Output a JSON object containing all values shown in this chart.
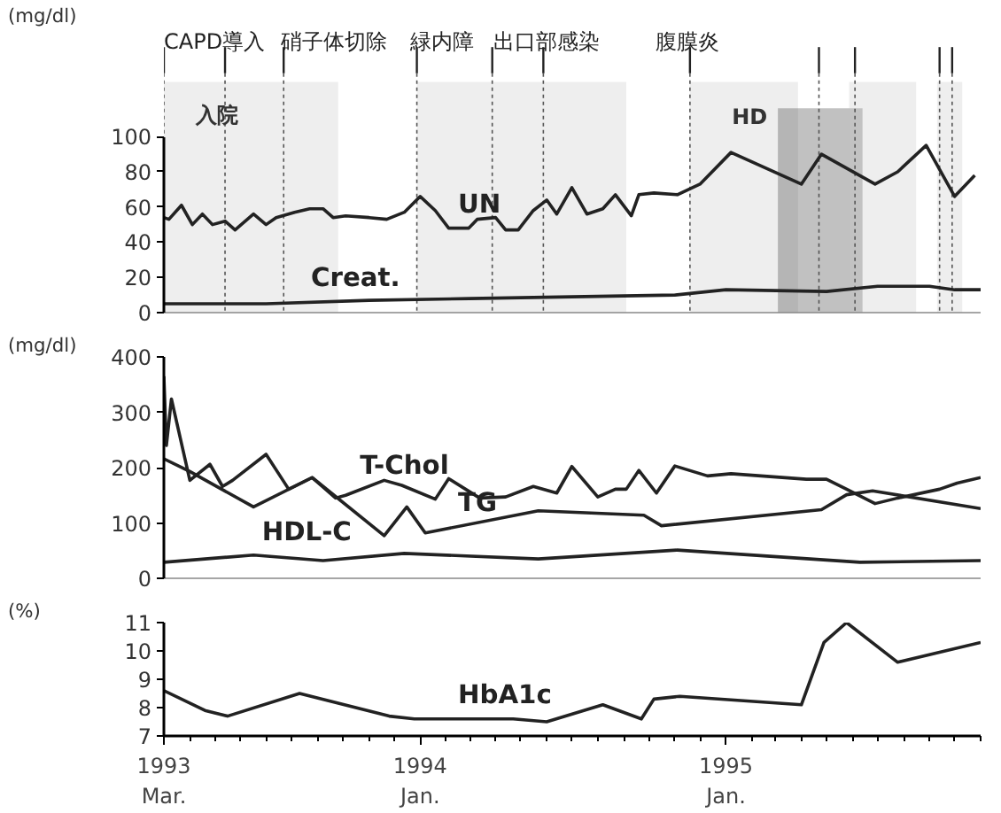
{
  "chart_data": [
    {
      "type": "line",
      "ylabel": "(mg/dl)",
      "xlim": [
        "1993-03-01",
        "1995-11-01"
      ],
      "ylim": [
        0,
        100
      ],
      "yticks": [
        0,
        20,
        40,
        60,
        80,
        100
      ],
      "tick_labels": "y",
      "grid": false,
      "marker": "none",
      "line_style": "solid",
      "bands": [
        {
          "axis": "x",
          "from": "1993-03-01",
          "to": "1993-09-25",
          "label": "入院",
          "color": "#c8c8c8"
        },
        {
          "axis": "x",
          "from": "1993-12-28",
          "to": "1994-09-04",
          "label": null,
          "color": "#c8c8c8"
        },
        {
          "axis": "x",
          "from": "1994-11-19",
          "to": "1995-03-28",
          "label": null,
          "color": "#c8c8c8"
        },
        {
          "axis": "x",
          "from": "1995-03-04",
          "to": "1995-06-13",
          "label": "HD",
          "color": "#333333"
        },
        {
          "axis": "x",
          "from": "1995-05-28",
          "to": "1995-08-16",
          "label": null,
          "color": "#c8c8c8"
        },
        {
          "axis": "x",
          "from": "1995-09-10",
          "to": "1995-10-10",
          "label": null,
          "color": "#c8c8c8"
        }
      ],
      "ref_lines": [
        {
          "axis": "x",
          "value": "1993-03-01",
          "label": "CAPD導入"
        },
        {
          "axis": "x",
          "value": "1993-05-13",
          "label": null
        },
        {
          "axis": "x",
          "value": "1993-07-22",
          "label": "硝子体切除"
        },
        {
          "axis": "x",
          "value": "1993-12-28",
          "label": "緑内障"
        },
        {
          "axis": "x",
          "value": "1994-03-28",
          "label": "出口部感染"
        },
        {
          "axis": "x",
          "value": "1994-05-28",
          "label": null
        },
        {
          "axis": "x",
          "value": "1994-11-19",
          "label": "腹膜炎"
        },
        {
          "axis": "x",
          "value": "1995-04-22",
          "label": null
        },
        {
          "axis": "x",
          "value": "1995-06-04",
          "label": null
        },
        {
          "axis": "x",
          "value": "1995-09-13",
          "label": null
        },
        {
          "axis": "x",
          "value": "1995-09-28",
          "label": null
        }
      ],
      "series": [
        {
          "name": "UN",
          "color": "#222222",
          "x": [
            "1993-03-01",
            "1993-03-07",
            "1993-03-22",
            "1993-04-04",
            "1993-04-16",
            "1993-04-28",
            "1993-05-13",
            "1993-05-25",
            "1993-06-16",
            "1993-07-01",
            "1993-07-13",
            "1993-08-04",
            "1993-08-22",
            "1993-09-07",
            "1993-09-19",
            "1993-10-04",
            "1993-11-01",
            "1993-11-22",
            "1993-12-13",
            "1994-01-01",
            "1994-01-19",
            "1994-02-04",
            "1994-02-28",
            "1994-03-10",
            "1994-04-01",
            "1994-04-13",
            "1994-04-28",
            "1994-05-16",
            "1994-06-01",
            "1994-06-13",
            "1994-07-01",
            "1994-07-19",
            "1994-08-07",
            "1994-08-22",
            "1994-09-10",
            "1994-09-19",
            "1994-10-07",
            "1994-11-04",
            "1994-12-01",
            "1995-01-07",
            "1995-04-01",
            "1995-04-25",
            "1995-06-28",
            "1995-07-25",
            "1995-08-28",
            "1995-10-01",
            "1995-10-25"
          ],
          "values": [
            54,
            53,
            61,
            50,
            56,
            50,
            52,
            47,
            56,
            50,
            54,
            57,
            59,
            59,
            54,
            55,
            54,
            53,
            57,
            66,
            58,
            48,
            48,
            53,
            54,
            47,
            47,
            58,
            64,
            56,
            71,
            56,
            59,
            67,
            55,
            67,
            68,
            67,
            73,
            91,
            73,
            90,
            73,
            80,
            95,
            66,
            78
          ]
        },
        {
          "name": "Creat.",
          "color": "#222222",
          "x": [
            "1993-03-01",
            "1993-07-01",
            "1993-11-01",
            "1994-03-01",
            "1994-07-01",
            "1994-11-01",
            "1995-01-01",
            "1995-05-01",
            "1995-07-01",
            "1995-09-01",
            "1995-10-01",
            "1995-11-01"
          ],
          "values": [
            5,
            5,
            7,
            8,
            9,
            10,
            13,
            12,
            15,
            15,
            13,
            13
          ]
        }
      ]
    },
    {
      "type": "line",
      "ylabel": "(mg/dl)",
      "xlim": [
        "1993-03-01",
        "1995-11-01"
      ],
      "ylim": [
        0,
        400
      ],
      "yticks": [
        0,
        100,
        200,
        300,
        400
      ],
      "tick_labels": "y",
      "grid": false,
      "marker": "none",
      "line_style": "solid",
      "series": [
        {
          "name": "T-Chol",
          "color": "#222222",
          "x": [
            "1993-03-01",
            "1993-03-04",
            "1993-03-10",
            "1993-04-01",
            "1993-04-25",
            "1993-05-10",
            "1993-05-22",
            "1993-07-01",
            "1993-07-28",
            "1993-08-25",
            "1993-09-22",
            "1993-10-04",
            "1993-11-19",
            "1993-12-10",
            "1994-01-19",
            "1994-02-04",
            "1994-03-13",
            "1994-04-13",
            "1994-05-16",
            "1994-06-13",
            "1994-07-01",
            "1994-08-01",
            "1994-08-22",
            "1994-09-04",
            "1994-09-19",
            "1994-10-10",
            "1994-11-01",
            "1994-12-10",
            "1995-01-07",
            "1995-04-07",
            "1995-05-01",
            "1995-05-25",
            "1995-06-28",
            "1995-07-25",
            "1995-09-13",
            "1995-10-04",
            "1995-11-01"
          ],
          "values": [
            365,
            240,
            324,
            177,
            206,
            166,
            177,
            224,
            161,
            182,
            145,
            150,
            177,
            168,
            143,
            180,
            145,
            147,
            166,
            154,
            202,
            147,
            161,
            161,
            195,
            154,
            203,
            185,
            189,
            179,
            179,
            161,
            135,
            145,
            161,
            172,
            182
          ]
        },
        {
          "name": "TG",
          "color": "#222222",
          "x": [
            "1993-03-01",
            "1993-04-01",
            "1993-06-16",
            "1993-08-25",
            "1993-11-19",
            "1993-12-16",
            "1994-01-07",
            "1994-05-22",
            "1994-09-25",
            "1994-10-16",
            "1995-04-25",
            "1995-05-25",
            "1995-06-25",
            "1995-11-01"
          ],
          "values": [
            216,
            193,
            129,
            182,
            77,
            129,
            82,
            122,
            114,
            95,
            124,
            151,
            158,
            126
          ]
        },
        {
          "name": "HDL-C",
          "color": "#222222",
          "x": [
            "1993-03-01",
            "1993-06-16",
            "1993-09-07",
            "1993-12-13",
            "1994-05-22",
            "1994-11-04",
            "1995-06-10",
            "1995-11-01"
          ],
          "values": [
            29,
            42,
            32,
            45,
            35,
            51,
            29,
            32
          ]
        }
      ]
    },
    {
      "type": "line",
      "ylabel": "(%)",
      "xlim": [
        "1993-03-01",
        "1995-11-01"
      ],
      "ylim": [
        7,
        11
      ],
      "yticks": [
        7,
        8,
        9,
        10,
        11
      ],
      "xticks": [
        {
          "value": "1993-03-01",
          "label": "1993\nMar."
        },
        {
          "value": "1994-01-01",
          "label": "1994\nJan."
        },
        {
          "value": "1995-01-01",
          "label": "1995\nJan."
        }
      ],
      "grid": false,
      "marker": "none",
      "line_style": "solid",
      "series": [
        {
          "name": "HbA1c",
          "color": "#222222",
          "x": [
            "1993-03-01",
            "1993-04-19",
            "1993-05-16",
            "1993-08-10",
            "1993-11-25",
            "1993-12-25",
            "1994-04-22",
            "1994-06-01",
            "1994-08-07",
            "1994-09-22",
            "1994-10-07",
            "1994-11-07",
            "1995-04-01",
            "1995-04-28",
            "1995-05-25",
            "1995-07-25",
            "1995-11-01"
          ],
          "values": [
            8.6,
            7.9,
            7.7,
            8.5,
            7.7,
            7.6,
            7.6,
            7.5,
            8.1,
            7.6,
            8.3,
            8.4,
            8.1,
            10.3,
            11.0,
            9.6,
            10.3
          ]
        }
      ]
    }
  ]
}
